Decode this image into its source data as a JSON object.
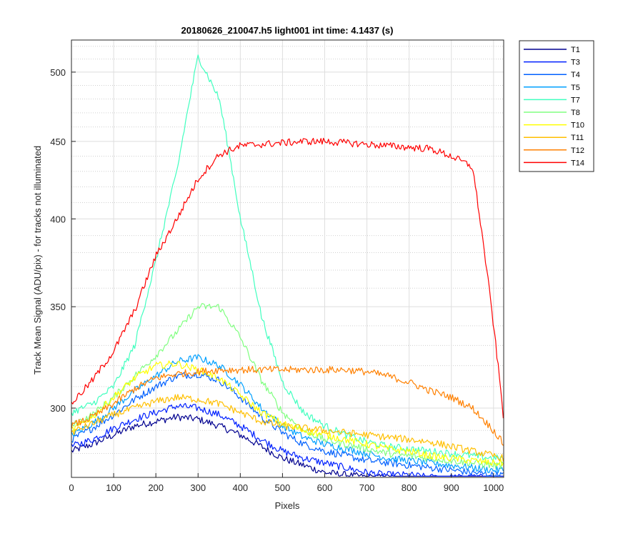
{
  "chart_data": {
    "type": "line",
    "title": "20180626_210047.h5  light001   int time: 4.1437 (s)",
    "xlabel": "Pixels",
    "ylabel": "Track Mean Signal (ADU/pix) - for tracks not illuminated",
    "xlim": [
      0,
      1024
    ],
    "ylim_display": [
      270,
      525
    ],
    "y_axis_scale": "log",
    "x_ticks": [
      "0",
      "100",
      "200",
      "300",
      "400",
      "500",
      "600",
      "700",
      "800",
      "900",
      "1000"
    ],
    "y_ticks": [
      "300",
      "350",
      "400",
      "450",
      "500"
    ],
    "grid": true,
    "legend_position": "outside-right-top",
    "x": [
      0,
      50,
      100,
      150,
      200,
      250,
      300,
      350,
      400,
      450,
      500,
      550,
      600,
      650,
      700,
      750,
      800,
      850,
      900,
      950,
      1000,
      1024
    ],
    "series": [
      {
        "name": "T1",
        "color": "#00008f",
        "values": [
          281,
          284,
          288,
          292,
          294,
          296,
          295,
          292,
          288,
          283,
          278,
          275,
          272,
          271,
          270,
          270,
          269,
          269,
          269,
          269,
          268,
          268
        ]
      },
      {
        "name": "T3",
        "color": "#0020ff",
        "values": [
          283,
          286,
          291,
          295,
          298,
          301,
          300,
          297,
          292,
          286,
          281,
          278,
          276,
          274,
          272,
          271,
          271,
          270,
          270,
          270,
          270,
          269
        ]
      },
      {
        "name": "T4",
        "color": "#0060ff",
        "values": [
          286,
          291,
          297,
          304,
          310,
          315,
          316,
          313,
          305,
          296,
          289,
          284,
          281,
          279,
          277,
          276,
          275,
          274,
          273,
          272,
          271,
          271
        ]
      },
      {
        "name": "T5",
        "color": "#00a0ff",
        "values": [
          288,
          293,
          300,
          308,
          315,
          322,
          324,
          320,
          311,
          300,
          292,
          287,
          284,
          282,
          280,
          278,
          277,
          276,
          275,
          274,
          273,
          273
        ]
      },
      {
        "name": "T7",
        "color": "#40ffbf",
        "values": [
          298,
          302,
          310,
          330,
          375,
          430,
          512,
          480,
          400,
          345,
          312,
          298,
          292,
          288,
          285,
          283,
          282,
          281,
          280,
          279,
          278,
          278
        ]
      },
      {
        "name": "T8",
        "color": "#80ff80",
        "values": [
          292,
          297,
          305,
          315,
          325,
          337,
          350,
          350,
          334,
          313,
          298,
          290,
          286,
          284,
          282,
          280,
          279,
          278,
          277,
          276,
          275,
          275
        ]
      },
      {
        "name": "T10",
        "color": "#ffff00",
        "values": [
          290,
          296,
          305,
          314,
          320,
          321,
          318,
          314,
          306,
          298,
          293,
          290,
          288,
          286,
          284,
          282,
          281,
          279,
          278,
          277,
          276,
          276
        ]
      },
      {
        "name": "T11",
        "color": "#ffbf00",
        "values": [
          289,
          293,
          297,
          300,
          303,
          305,
          304,
          302,
          298,
          294,
          292,
          291,
          290,
          289,
          288,
          287,
          286,
          285,
          283,
          281,
          279,
          278
        ]
      },
      {
        "name": "T12",
        "color": "#ff8000",
        "values": [
          292,
          296,
          302,
          309,
          314,
          316,
          317,
          318,
          318,
          318,
          318,
          318,
          318,
          318,
          317,
          315,
          312,
          308,
          305,
          300,
          290,
          284
        ]
      },
      {
        "name": "T14",
        "color": "#ff0000",
        "values": [
          302,
          313,
          327,
          348,
          378,
          400,
          425,
          441,
          447,
          448,
          449,
          450,
          450,
          449,
          448,
          447,
          446,
          445,
          440,
          433,
          340,
          295
        ]
      }
    ]
  }
}
